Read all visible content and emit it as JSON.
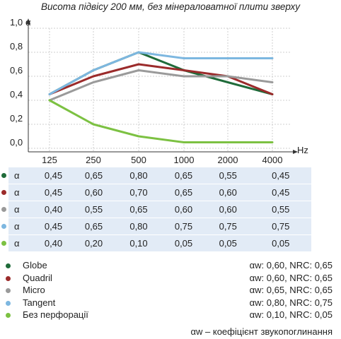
{
  "chart_data": {
    "type": "line",
    "title": "Висота підвісу 200 мм, без мінераловатної плити зверху",
    "ylabel": "α",
    "xlabel": "Hz",
    "categories": [
      "125",
      "250",
      "500",
      "1000",
      "2000",
      "4000"
    ],
    "y_ticks": [
      "0,0",
      "0,2",
      "0,4",
      "0,6",
      "0,8",
      "1,0"
    ],
    "ylim": [
      0,
      1.0
    ],
    "grid": true,
    "series": [
      {
        "name": "Globe",
        "color": "#1f6b3a",
        "values": [
          0.45,
          0.65,
          0.8,
          0.65,
          0.55,
          0.45
        ]
      },
      {
        "name": "Quadril",
        "color": "#9b2b2b",
        "values": [
          0.45,
          0.6,
          0.7,
          0.65,
          0.6,
          0.45
        ]
      },
      {
        "name": "Micro",
        "color": "#9a9a9a",
        "values": [
          0.4,
          0.55,
          0.65,
          0.6,
          0.6,
          0.55
        ]
      },
      {
        "name": "Tangent",
        "color": "#7db7e0",
        "values": [
          0.45,
          0.65,
          0.8,
          0.75,
          0.75,
          0.75
        ]
      },
      {
        "name": "Без перфорації",
        "color": "#7cc142",
        "values": [
          0.4,
          0.2,
          0.1,
          0.05,
          0.05,
          0.05
        ]
      }
    ]
  },
  "table": {
    "row_label": "α",
    "rows": [
      [
        "0,45",
        "0,65",
        "0,80",
        "0,65",
        "0,55",
        "0,45"
      ],
      [
        "0,45",
        "0,60",
        "0,70",
        "0,65",
        "0,60",
        "0,45"
      ],
      [
        "0,40",
        "0,55",
        "0,65",
        "0,60",
        "0,60",
        "0,55"
      ],
      [
        "0,45",
        "0,65",
        "0,80",
        "0,75",
        "0,75",
        "0,75"
      ],
      [
        "0,40",
        "0,20",
        "0,10",
        "0,05",
        "0,05",
        "0,05"
      ]
    ]
  },
  "legend": [
    {
      "name": "Globe",
      "rating": "αw: 0,60, NRC: 0,65"
    },
    {
      "name": "Quadril",
      "rating": "αw: 0,60, NRC: 0,65"
    },
    {
      "name": "Micro",
      "rating": "αw: 0,65, NRC: 0,65"
    },
    {
      "name": "Tangent",
      "rating": "αw: 0,80, NRC: 0,75"
    },
    {
      "name": "Без перфорації",
      "rating": "αw: 0,10, NRC: 0,05"
    }
  ],
  "footnote": "αw – коефіцієнт звукопоглинання"
}
